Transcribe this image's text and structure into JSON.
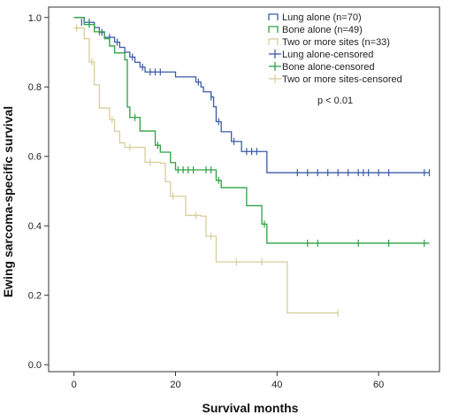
{
  "chart_data": {
    "type": "line",
    "xlabel": "Survival months",
    "ylabel": "Ewing sarcoma-specific survival",
    "xlim": [
      -5,
      72
    ],
    "ylim": [
      -0.02,
      1.03
    ],
    "xticks": [
      0,
      20,
      40,
      60
    ],
    "yticks": [
      0.0,
      0.2,
      0.4,
      0.6,
      0.8,
      1.0
    ],
    "grid": false,
    "legend_position": "top-right",
    "annotation": "p < 0.01",
    "legend": [
      {
        "label": "Lung alone (n=70)",
        "kind": "line",
        "color": "#3b5ba5"
      },
      {
        "label": "Bone alone (n=49)",
        "kind": "line",
        "color": "#2ea043"
      },
      {
        "label": "Two or more sites (n=33)",
        "kind": "line",
        "color": "#d8cd9c"
      },
      {
        "label": "Lung alone-censored",
        "kind": "censor",
        "color": "#3b5ba5"
      },
      {
        "label": "Bone alone-censored",
        "kind": "censor",
        "color": "#2ea043"
      },
      {
        "label": "Two or more sites-censored",
        "kind": "censor",
        "color": "#d8cd9c"
      }
    ],
    "series": [
      {
        "name": "Lung alone",
        "color": "#3b5ba5",
        "steps": [
          [
            0,
            1.0
          ],
          [
            2,
            0.986
          ],
          [
            4,
            0.971
          ],
          [
            5,
            0.957
          ],
          [
            6,
            0.943
          ],
          [
            8,
            0.929
          ],
          [
            9,
            0.914
          ],
          [
            10,
            0.9
          ],
          [
            11,
            0.886
          ],
          [
            12,
            0.871
          ],
          [
            13,
            0.857
          ],
          [
            14,
            0.843
          ],
          [
            20,
            0.829
          ],
          [
            24,
            0.814
          ],
          [
            25,
            0.8
          ],
          [
            25.5,
            0.786
          ],
          [
            27,
            0.771
          ],
          [
            27.5,
            0.743
          ],
          [
            28,
            0.7
          ],
          [
            29,
            0.671
          ],
          [
            31,
            0.643
          ],
          [
            33,
            0.614
          ],
          [
            38,
            0.553
          ]
        ],
        "end_x": 70,
        "censored": [
          [
            1.5,
            0.986
          ],
          [
            3,
            0.986
          ],
          [
            5.5,
            0.957
          ],
          [
            7,
            0.943
          ],
          [
            8.5,
            0.929
          ],
          [
            11.5,
            0.886
          ],
          [
            13.5,
            0.857
          ],
          [
            15,
            0.843
          ],
          [
            16,
            0.843
          ],
          [
            17,
            0.843
          ],
          [
            24.5,
            0.814
          ],
          [
            27,
            0.771
          ],
          [
            28.5,
            0.7
          ],
          [
            31.5,
            0.643
          ],
          [
            34,
            0.614
          ],
          [
            35,
            0.614
          ],
          [
            36,
            0.614
          ],
          [
            44,
            0.553
          ],
          [
            46,
            0.553
          ],
          [
            48,
            0.553
          ],
          [
            50,
            0.553
          ],
          [
            52,
            0.553
          ],
          [
            54,
            0.553
          ],
          [
            56,
            0.553
          ],
          [
            57,
            0.553
          ],
          [
            58,
            0.553
          ],
          [
            60,
            0.553
          ],
          [
            62,
            0.553
          ],
          [
            69,
            0.553
          ],
          [
            70,
            0.553
          ]
        ]
      },
      {
        "name": "Bone alone",
        "color": "#2ea043",
        "steps": [
          [
            0,
            1.0
          ],
          [
            2,
            0.98
          ],
          [
            4,
            0.959
          ],
          [
            6,
            0.939
          ],
          [
            7,
            0.918
          ],
          [
            8,
            0.898
          ],
          [
            10,
            0.878
          ],
          [
            10.5,
            0.742
          ],
          [
            11,
            0.712
          ],
          [
            13,
            0.673
          ],
          [
            16,
            0.632
          ],
          [
            17,
            0.612
          ],
          [
            19,
            0.582
          ],
          [
            20,
            0.561
          ],
          [
            27,
            0.561
          ],
          [
            28,
            0.531
          ],
          [
            29,
            0.51
          ],
          [
            34,
            0.458
          ],
          [
            37,
            0.405
          ],
          [
            38,
            0.35
          ]
        ],
        "end_x": 70,
        "censored": [
          [
            3,
            0.98
          ],
          [
            5,
            0.959
          ],
          [
            12,
            0.712
          ],
          [
            16.5,
            0.632
          ],
          [
            20.5,
            0.561
          ],
          [
            21.5,
            0.561
          ],
          [
            22.5,
            0.561
          ],
          [
            23.5,
            0.561
          ],
          [
            26,
            0.561
          ],
          [
            27,
            0.561
          ],
          [
            28.5,
            0.531
          ],
          [
            37.5,
            0.405
          ],
          [
            46,
            0.35
          ],
          [
            48,
            0.35
          ],
          [
            56,
            0.35
          ],
          [
            62,
            0.35
          ],
          [
            69,
            0.35
          ]
        ]
      },
      {
        "name": "Two or more sites",
        "color": "#d8cd9c",
        "steps": [
          [
            0,
            0.97
          ],
          [
            2,
            0.939
          ],
          [
            3,
            0.872
          ],
          [
            4,
            0.806
          ],
          [
            5,
            0.739
          ],
          [
            7,
            0.706
          ],
          [
            8,
            0.672
          ],
          [
            9,
            0.639
          ],
          [
            10,
            0.626
          ],
          [
            13,
            0.626
          ],
          [
            14,
            0.583
          ],
          [
            17,
            0.58
          ],
          [
            18,
            0.527
          ],
          [
            19,
            0.485
          ],
          [
            22,
            0.43
          ],
          [
            25,
            0.428
          ],
          [
            26,
            0.37
          ],
          [
            28,
            0.296
          ],
          [
            34,
            0.296
          ],
          [
            37,
            0.296
          ],
          [
            38,
            0.296
          ],
          [
            41,
            0.296
          ],
          [
            42,
            0.149
          ]
        ],
        "end_x": 52,
        "censored": [
          [
            0.5,
            0.97
          ],
          [
            3.5,
            0.872
          ],
          [
            7.5,
            0.706
          ],
          [
            11,
            0.626
          ],
          [
            15,
            0.583
          ],
          [
            19.5,
            0.485
          ],
          [
            24,
            0.43
          ],
          [
            27,
            0.37
          ],
          [
            32,
            0.296
          ],
          [
            37,
            0.296
          ],
          [
            52,
            0.149
          ]
        ]
      }
    ]
  }
}
